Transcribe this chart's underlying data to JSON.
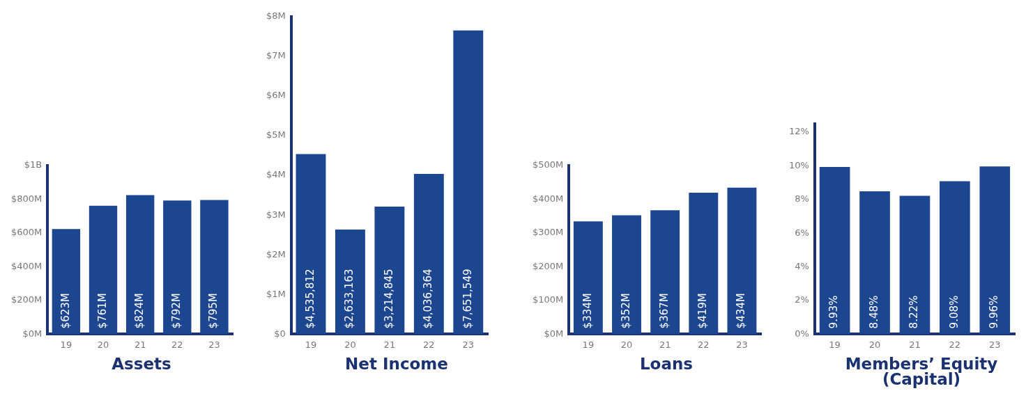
{
  "chart_data": [
    {
      "type": "bar",
      "xlabel": "Assets",
      "categories": [
        "19",
        "20",
        "21",
        "22",
        "23"
      ],
      "color": "#1d4690",
      "values": [
        623000000,
        761000000,
        824000000,
        792000000,
        795000000
      ],
      "value_labels": [
        "$623M",
        "$761M",
        "$824M",
        "$792M",
        "$795M"
      ],
      "ylim": [
        0,
        1000000000
      ],
      "yticks": [
        {
          "value": 0,
          "label": "$0M"
        },
        {
          "value": 200000000,
          "label": "$200M"
        },
        {
          "value": 400000000,
          "label": "$400M"
        },
        {
          "value": 600000000,
          "label": "$600M"
        },
        {
          "value": 800000000,
          "label": "$800M"
        },
        {
          "value": 1000000000,
          "label": "$1B"
        }
      ],
      "grid": false,
      "legend": false
    },
    {
      "type": "bar",
      "xlabel": "Net Income",
      "categories": [
        "19",
        "20",
        "21",
        "22",
        "23"
      ],
      "color": "#1d4690",
      "values": [
        4535812,
        2633163,
        3214845,
        4036364,
        7651549
      ],
      "value_labels": [
        "$4,535,812",
        "$2,633,163",
        "$3,214,845",
        "$4,036,364",
        "$7,651,549"
      ],
      "ylim": [
        0,
        8000000
      ],
      "yticks": [
        {
          "value": 0,
          "label": "$0"
        },
        {
          "value": 1000000,
          "label": "$1M"
        },
        {
          "value": 2000000,
          "label": "$2M"
        },
        {
          "value": 3000000,
          "label": "$3M"
        },
        {
          "value": 4000000,
          "label": "$4M"
        },
        {
          "value": 5000000,
          "label": "$5M"
        },
        {
          "value": 6000000,
          "label": "$6M"
        },
        {
          "value": 7000000,
          "label": "$7M"
        },
        {
          "value": 8000000,
          "label": "$8M"
        }
      ],
      "grid": false,
      "legend": false
    },
    {
      "type": "bar",
      "xlabel": "Loans",
      "categories": [
        "19",
        "20",
        "21",
        "22",
        "23"
      ],
      "color": "#1d4690",
      "values": [
        334,
        352,
        367,
        419,
        434
      ],
      "value_labels": [
        "$334M",
        "$352M",
        "$367M",
        "$419M",
        "$434M"
      ],
      "ylim": [
        0,
        500
      ],
      "yticks": [
        {
          "value": 0,
          "label": "$0M"
        },
        {
          "value": 100,
          "label": "$100M"
        },
        {
          "value": 200,
          "label": "$200M"
        },
        {
          "value": 300,
          "label": "$300M"
        },
        {
          "value": 400,
          "label": "$400M"
        },
        {
          "value": 500,
          "label": "$500M"
        }
      ],
      "grid": false,
      "legend": false
    },
    {
      "type": "bar",
      "xlabel": "Members’ Equity (Capital)",
      "categories": [
        "19",
        "20",
        "21",
        "22",
        "23"
      ],
      "color": "#1d4690",
      "values": [
        9.93,
        8.48,
        8.22,
        9.08,
        9.96
      ],
      "value_labels": [
        "9.93%",
        "8.48%",
        "8.22%",
        "9.08%",
        "9.96%"
      ],
      "ylim": [
        0,
        12.5
      ],
      "yticks": [
        {
          "value": 0,
          "label": "0%"
        },
        {
          "value": 2,
          "label": "2%"
        },
        {
          "value": 4,
          "label": "4%"
        },
        {
          "value": 6,
          "label": "6%"
        },
        {
          "value": 8,
          "label": "8%"
        },
        {
          "value": 10,
          "label": "10%"
        },
        {
          "value": 12,
          "label": "12%"
        }
      ],
      "grid": false,
      "legend": false
    }
  ]
}
